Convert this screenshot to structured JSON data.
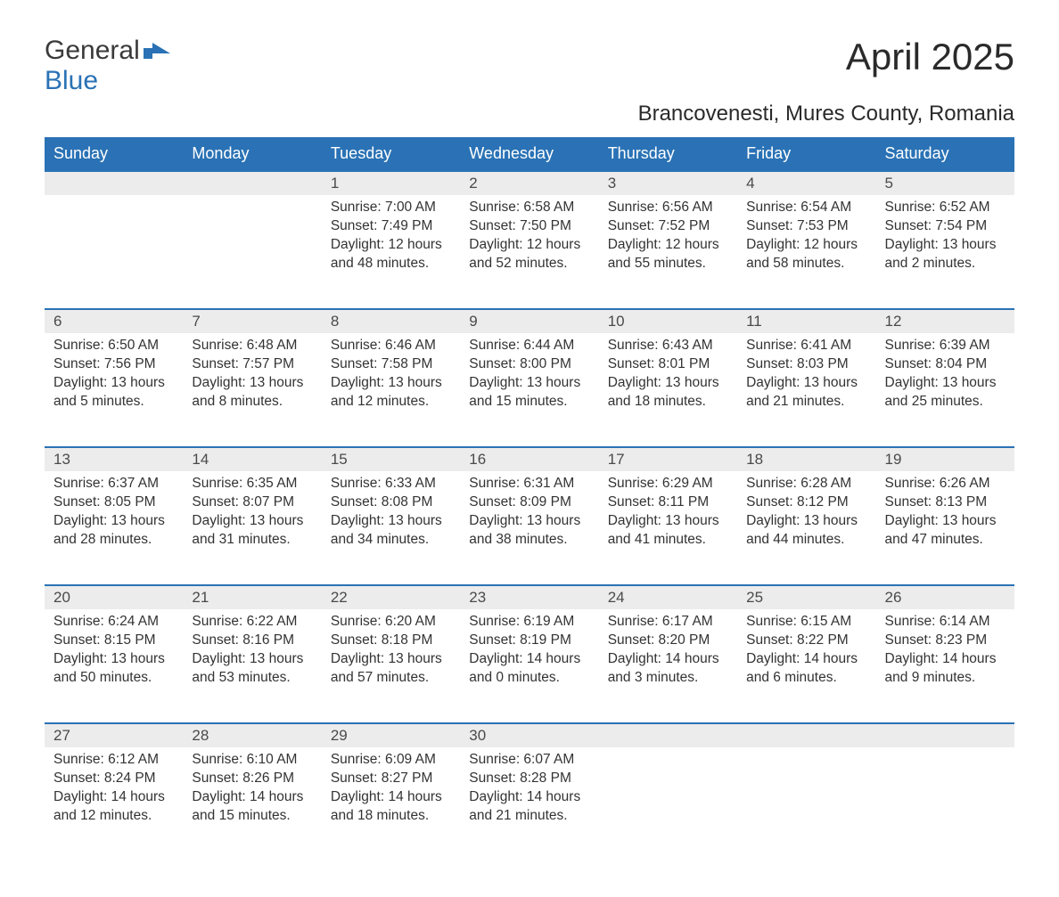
{
  "brand": {
    "text1": "General",
    "text2": "Blue",
    "color_general": "#3a3a3a",
    "color_blue": "#2a72b5",
    "icon_color": "#2a72b5"
  },
  "title": "April 2025",
  "subtitle": "Brancovenesti, Mures County, Romania",
  "colors": {
    "header_bg": "#2a72b5",
    "header_text": "#ffffff",
    "daynum_bg": "#ececec",
    "body_text": "#333333",
    "row_border": "#2a72b5",
    "page_bg": "#ffffff"
  },
  "fonts": {
    "title_size_pt": 32,
    "subtitle_size_pt": 18,
    "header_size_pt": 14,
    "daynum_size_pt": 13,
    "cell_size_pt": 12
  },
  "weekdays": [
    "Sunday",
    "Monday",
    "Tuesday",
    "Wednesday",
    "Thursday",
    "Friday",
    "Saturday"
  ],
  "weeks": [
    [
      null,
      null,
      {
        "n": "1",
        "sunrise": "7:00 AM",
        "sunset": "7:49 PM",
        "daylight": "12 hours and 48 minutes."
      },
      {
        "n": "2",
        "sunrise": "6:58 AM",
        "sunset": "7:50 PM",
        "daylight": "12 hours and 52 minutes."
      },
      {
        "n": "3",
        "sunrise": "6:56 AM",
        "sunset": "7:52 PM",
        "daylight": "12 hours and 55 minutes."
      },
      {
        "n": "4",
        "sunrise": "6:54 AM",
        "sunset": "7:53 PM",
        "daylight": "12 hours and 58 minutes."
      },
      {
        "n": "5",
        "sunrise": "6:52 AM",
        "sunset": "7:54 PM",
        "daylight": "13 hours and 2 minutes."
      }
    ],
    [
      {
        "n": "6",
        "sunrise": "6:50 AM",
        "sunset": "7:56 PM",
        "daylight": "13 hours and 5 minutes."
      },
      {
        "n": "7",
        "sunrise": "6:48 AM",
        "sunset": "7:57 PM",
        "daylight": "13 hours and 8 minutes."
      },
      {
        "n": "8",
        "sunrise": "6:46 AM",
        "sunset": "7:58 PM",
        "daylight": "13 hours and 12 minutes."
      },
      {
        "n": "9",
        "sunrise": "6:44 AM",
        "sunset": "8:00 PM",
        "daylight": "13 hours and 15 minutes."
      },
      {
        "n": "10",
        "sunrise": "6:43 AM",
        "sunset": "8:01 PM",
        "daylight": "13 hours and 18 minutes."
      },
      {
        "n": "11",
        "sunrise": "6:41 AM",
        "sunset": "8:03 PM",
        "daylight": "13 hours and 21 minutes."
      },
      {
        "n": "12",
        "sunrise": "6:39 AM",
        "sunset": "8:04 PM",
        "daylight": "13 hours and 25 minutes."
      }
    ],
    [
      {
        "n": "13",
        "sunrise": "6:37 AM",
        "sunset": "8:05 PM",
        "daylight": "13 hours and 28 minutes."
      },
      {
        "n": "14",
        "sunrise": "6:35 AM",
        "sunset": "8:07 PM",
        "daylight": "13 hours and 31 minutes."
      },
      {
        "n": "15",
        "sunrise": "6:33 AM",
        "sunset": "8:08 PM",
        "daylight": "13 hours and 34 minutes."
      },
      {
        "n": "16",
        "sunrise": "6:31 AM",
        "sunset": "8:09 PM",
        "daylight": "13 hours and 38 minutes."
      },
      {
        "n": "17",
        "sunrise": "6:29 AM",
        "sunset": "8:11 PM",
        "daylight": "13 hours and 41 minutes."
      },
      {
        "n": "18",
        "sunrise": "6:28 AM",
        "sunset": "8:12 PM",
        "daylight": "13 hours and 44 minutes."
      },
      {
        "n": "19",
        "sunrise": "6:26 AM",
        "sunset": "8:13 PM",
        "daylight": "13 hours and 47 minutes."
      }
    ],
    [
      {
        "n": "20",
        "sunrise": "6:24 AM",
        "sunset": "8:15 PM",
        "daylight": "13 hours and 50 minutes."
      },
      {
        "n": "21",
        "sunrise": "6:22 AM",
        "sunset": "8:16 PM",
        "daylight": "13 hours and 53 minutes."
      },
      {
        "n": "22",
        "sunrise": "6:20 AM",
        "sunset": "8:18 PM",
        "daylight": "13 hours and 57 minutes."
      },
      {
        "n": "23",
        "sunrise": "6:19 AM",
        "sunset": "8:19 PM",
        "daylight": "14 hours and 0 minutes."
      },
      {
        "n": "24",
        "sunrise": "6:17 AM",
        "sunset": "8:20 PM",
        "daylight": "14 hours and 3 minutes."
      },
      {
        "n": "25",
        "sunrise": "6:15 AM",
        "sunset": "8:22 PM",
        "daylight": "14 hours and 6 minutes."
      },
      {
        "n": "26",
        "sunrise": "6:14 AM",
        "sunset": "8:23 PM",
        "daylight": "14 hours and 9 minutes."
      }
    ],
    [
      {
        "n": "27",
        "sunrise": "6:12 AM",
        "sunset": "8:24 PM",
        "daylight": "14 hours and 12 minutes."
      },
      {
        "n": "28",
        "sunrise": "6:10 AM",
        "sunset": "8:26 PM",
        "daylight": "14 hours and 15 minutes."
      },
      {
        "n": "29",
        "sunrise": "6:09 AM",
        "sunset": "8:27 PM",
        "daylight": "14 hours and 18 minutes."
      },
      {
        "n": "30",
        "sunrise": "6:07 AM",
        "sunset": "8:28 PM",
        "daylight": "14 hours and 21 minutes."
      },
      null,
      null,
      null
    ]
  ],
  "labels": {
    "sunrise": "Sunrise:",
    "sunset": "Sunset:",
    "daylight": "Daylight:"
  }
}
